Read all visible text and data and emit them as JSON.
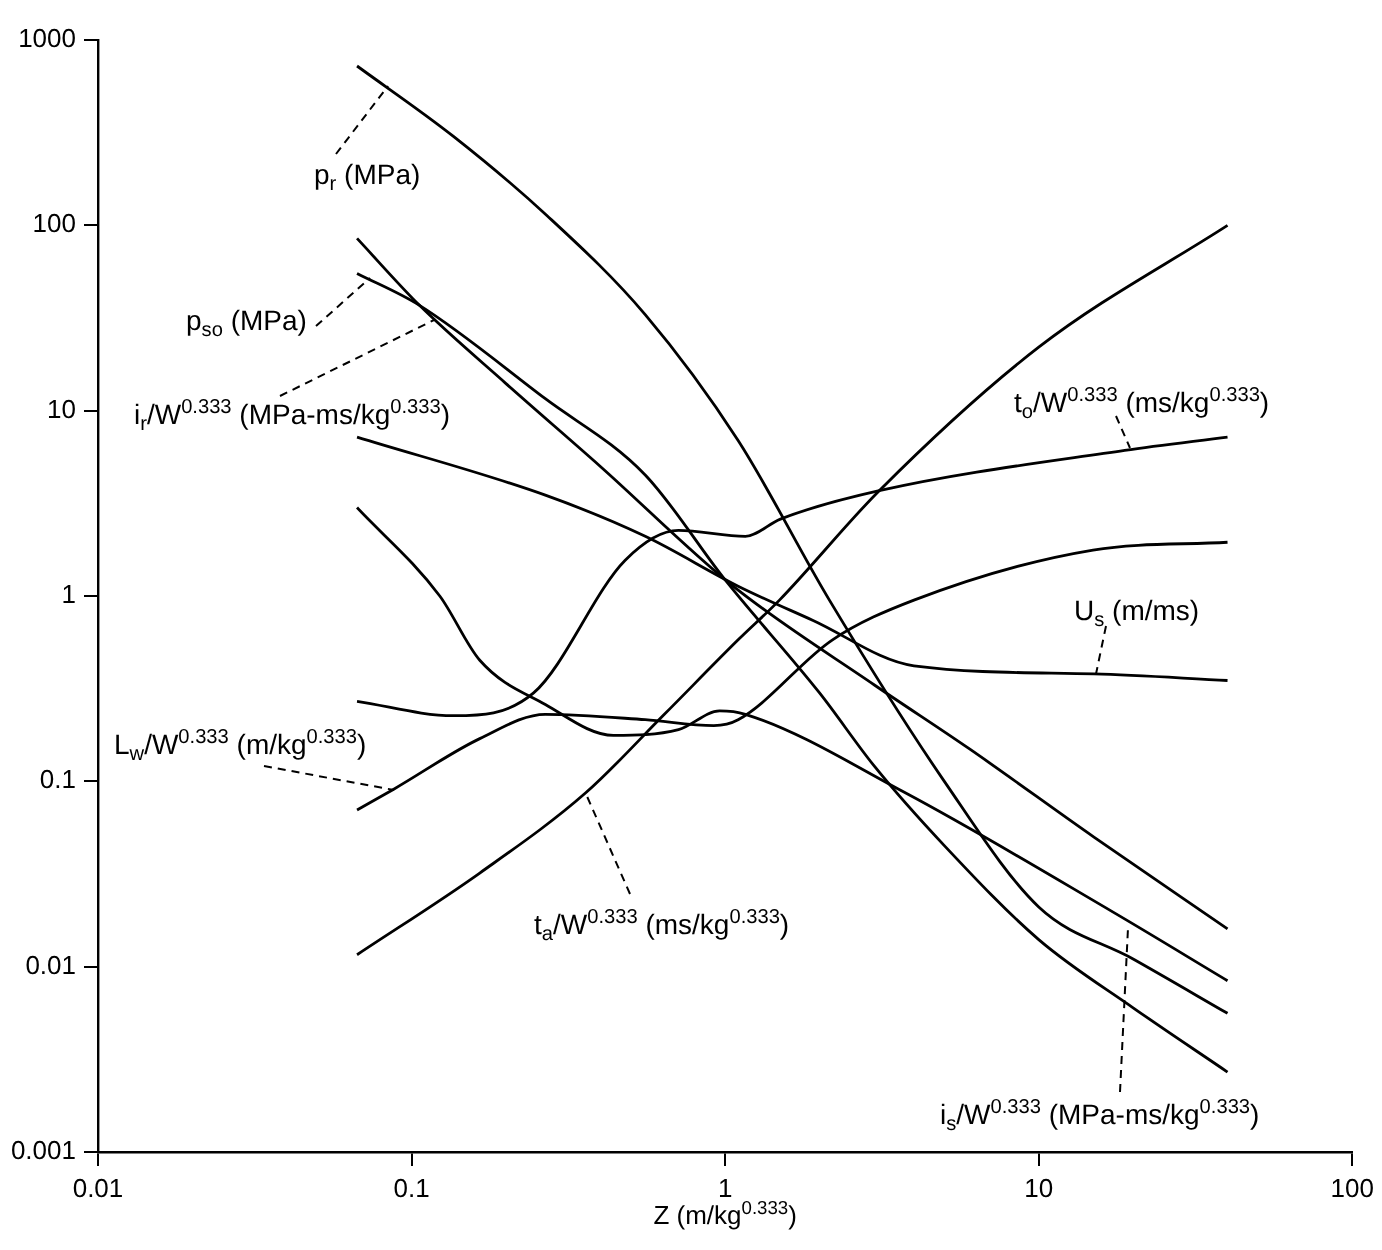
{
  "chart_data": {
    "type": "line",
    "xlabel": "Z (m/kg$^{0.333}$)",
    "log": "xy",
    "marker": "none",
    "line_style": "solid",
    "xlim": [
      0.01,
      100
    ],
    "ylim": [
      0.001,
      1000
    ],
    "xticks": [
      0.01,
      0.1,
      1,
      10,
      100
    ],
    "yticks": [
      0.001,
      0.01,
      0.1,
      1,
      10,
      100,
      1000
    ],
    "series": [
      {
        "name": "p$_{r}$ (MPa)",
        "color": "#000000",
        "x": [
          0.067,
          0.136,
          0.27,
          0.556,
          1.1,
          2.15,
          5,
          10,
          20,
          40
        ],
        "values": [
          724,
          302,
          113,
          33,
          6.9,
          0.95,
          0.1,
          0.021,
          0.011,
          0.0056
        ]
      },
      {
        "name": "i$_{r}$/W$^{0.333}$ (MPa-ms/kg$^{0.333}$)",
        "color": "#000000",
        "x": [
          0.067,
          0.106,
          0.2,
          0.4,
          1.06,
          3,
          6,
          15,
          40
        ],
        "values": [
          85,
          37,
          14,
          5,
          1.13,
          0.33,
          0.15,
          0.05,
          0.016
        ]
      },
      {
        "name": "p$_{so}$ (MPa)",
        "color": "#000000",
        "x": [
          0.067,
          0.106,
          0.267,
          0.556,
          1,
          2,
          3,
          5,
          10,
          20,
          40
        ],
        "values": [
          55,
          37,
          11.6,
          4.5,
          1.22,
          0.3,
          0.12,
          0.045,
          0.014,
          0.006,
          0.0027
        ]
      },
      {
        "name": "U$_{s}$ (m/ms)",
        "color": "#000000",
        "x": [
          0.067,
          0.267,
          0.556,
          1.1,
          1.9,
          4,
          15,
          40
        ],
        "values": [
          7.2,
          3.5,
          2.1,
          1.13,
          0.74,
          0.42,
          0.38,
          0.35
        ]
      },
      {
        "name": "i$_{s}$/W$^{0.333}$ (MPa-ms/kg$^{0.333}$)",
        "color": "#000000",
        "x": [
          0.067,
          0.123,
          0.165,
          0.267,
          0.44,
          0.71,
          0.96,
          1.16,
          3.74,
          17,
          40
        ],
        "values": [
          3,
          1,
          0.45,
          0.26,
          0.177,
          0.19,
          0.24,
          0.23,
          0.087,
          0.02,
          0.0084
        ]
      },
      {
        "name": "t$_{o}$/W$^{0.333}$ (ms/kg$^{0.333}$)",
        "color": "#000000",
        "x": [
          0.067,
          0.136,
          0.245,
          0.48,
          0.71,
          1.16,
          1.5,
          3.1,
          18.8,
          40
        ],
        "values": [
          0.27,
          0.226,
          0.3,
          1.56,
          2.26,
          2.1,
          2.6,
          3.7,
          6.1,
          7.2
        ]
      },
      {
        "name": "L$_{w}$/W$^{0.333}$ (m/kg$^{0.333}$)",
        "color": "#000000",
        "x": [
          0.067,
          0.088,
          0.165,
          0.267,
          0.556,
          0.92,
          1.1,
          2.2,
          4,
          14.9,
          40
        ],
        "values": [
          0.07,
          0.091,
          0.17,
          0.23,
          0.215,
          0.2,
          0.215,
          0.58,
          0.95,
          1.77,
          1.95
        ]
      },
      {
        "name": "t$_{a}$/W$^{0.333}$ (ms/kg$^{0.333}$)",
        "color": "#000000",
        "x": [
          0.067,
          0.165,
          0.36,
          0.64,
          1.1,
          1.49,
          3.1,
          10,
          40
        ],
        "values": [
          0.0116,
          0.032,
          0.087,
          0.23,
          0.58,
          0.95,
          3.7,
          22,
          100
        ]
      }
    ]
  }
}
